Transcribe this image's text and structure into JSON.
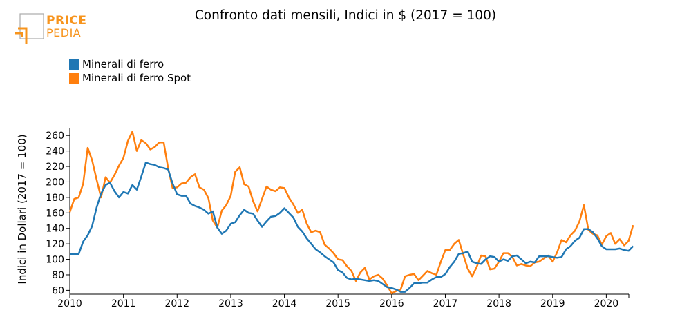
{
  "logo": {
    "line1": "PRICE",
    "line2": "PEDIA",
    "color": "#f7941d"
  },
  "chart_data": {
    "type": "line",
    "title": "Confronto dati mensili, Indici in $ (2017 = 100)",
    "xlabel": "",
    "ylabel": "Indici in Dollari (2017 = 100)",
    "xlim": [
      2010.0,
      2020.42
    ],
    "ylim": [
      55,
      270
    ],
    "yticks": [
      60,
      80,
      100,
      120,
      140,
      160,
      180,
      200,
      220,
      240,
      260
    ],
    "xticks": [
      2010,
      2011,
      2012,
      2013,
      2014,
      2015,
      2016,
      2017,
      2018,
      2019,
      2020
    ],
    "xtick_labels": [
      "2010",
      "2011",
      "2012",
      "2013",
      "2014",
      "2015",
      "2016",
      "2017",
      "2018",
      "2019",
      "2020"
    ],
    "legend_position": "top-left",
    "grid": false,
    "series": [
      {
        "name": "Minerali di ferro",
        "color": "#1f77b4",
        "x_start": "2010-01",
        "values": [
          107,
          107,
          107,
          123,
          131,
          143,
          167,
          185,
          196,
          199,
          188,
          180,
          187,
          185,
          196,
          190,
          207,
          225,
          223,
          222,
          219,
          218,
          216,
          198,
          184,
          182,
          182,
          172,
          169,
          167,
          164,
          159,
          162,
          141,
          133,
          137,
          146,
          148,
          157,
          164,
          160,
          159,
          150,
          142,
          149,
          155,
          156,
          160,
          166,
          160,
          154,
          142,
          136,
          127,
          120,
          113,
          109,
          104,
          100,
          96,
          86,
          83,
          76,
          74,
          75,
          74,
          73,
          72,
          73,
          72,
          68,
          64,
          63,
          61,
          58,
          58,
          63,
          69,
          69,
          70,
          70,
          74,
          77,
          77,
          81,
          90,
          97,
          107,
          108,
          110,
          97,
          95,
          94,
          100,
          104,
          103,
          97,
          100,
          98,
          104,
          105,
          100,
          95,
          97,
          96,
          104,
          104,
          104,
          103,
          102,
          103,
          113,
          117,
          124,
          128,
          139,
          139,
          135,
          127,
          117,
          113,
          113,
          113,
          114,
          112,
          111,
          117
        ]
      },
      {
        "name": "Minerali di ferro Spot",
        "color": "#ff7f0e",
        "x_start": "2010-01",
        "values": [
          161,
          178,
          180,
          198,
          244,
          228,
          203,
          180,
          206,
          199,
          209,
          221,
          231,
          253,
          265,
          240,
          254,
          250,
          242,
          245,
          251,
          251,
          218,
          192,
          193,
          198,
          199,
          206,
          210,
          193,
          190,
          179,
          150,
          141,
          163,
          170,
          182,
          213,
          219,
          197,
          194,
          175,
          162,
          178,
          194,
          190,
          188,
          193,
          192,
          180,
          171,
          160,
          164,
          146,
          135,
          137,
          135,
          119,
          114,
          108,
          100,
          99,
          91,
          85,
          72,
          83,
          89,
          74,
          78,
          80,
          75,
          66,
          56,
          59,
          61,
          78,
          80,
          81,
          73,
          79,
          85,
          82,
          80,
          97,
          112,
          112,
          120,
          125,
          106,
          88,
          78,
          90,
          105,
          104,
          87,
          88,
          97,
          108,
          108,
          103,
          92,
          94,
          92,
          91,
          96,
          97,
          101,
          105,
          97,
          109,
          125,
          122,
          131,
          137,
          149,
          170,
          138,
          133,
          131,
          119,
          130,
          134,
          120,
          126,
          118,
          124,
          144
        ]
      }
    ]
  }
}
